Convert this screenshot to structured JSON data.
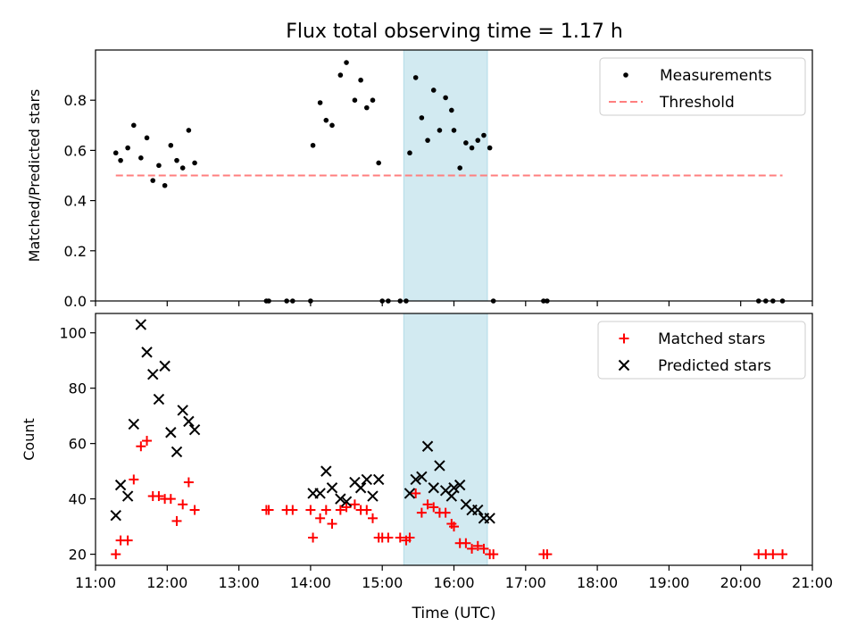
{
  "figure_title": "Flux total observing time = 1.17 h",
  "colors": {
    "matched": "#ff0000",
    "predicted": "#000000",
    "measurement": "#000000",
    "threshold": "#ff7f7f",
    "highlight": "#add8e6"
  },
  "chart_data": [
    {
      "type": "scatter",
      "title": "Flux total observing time = 1.17 h",
      "xlabel": "",
      "ylabel": "Matched/Predicted stars",
      "xlim": [
        "11:00",
        "21:00"
      ],
      "ylim": [
        0,
        1.0
      ],
      "yticks": [
        "0.0",
        "0.2",
        "0.4",
        "0.6",
        "0.8"
      ],
      "xticks": [
        "11:00",
        "12:00",
        "13:00",
        "14:00",
        "15:00",
        "16:00",
        "17:00",
        "18:00",
        "19:00",
        "20:00",
        "21:00"
      ],
      "highlight_span": [
        "15:18",
        "16:28"
      ],
      "legend": {
        "position": "upper right",
        "entries": [
          {
            "label": "Measurements",
            "marker": "dot"
          },
          {
            "label": "Threshold",
            "marker": "dashed-line"
          }
        ]
      },
      "series": [
        {
          "name": "Measurements",
          "marker": "dot",
          "points": [
            [
              "11:17",
              0.59
            ],
            [
              "11:21",
              0.56
            ],
            [
              "11:27",
              0.61
            ],
            [
              "11:32",
              0.7
            ],
            [
              "11:38",
              0.57
            ],
            [
              "11:43",
              0.65
            ],
            [
              "11:48",
              0.48
            ],
            [
              "11:53",
              0.54
            ],
            [
              "11:58",
              0.46
            ],
            [
              "12:03",
              0.62
            ],
            [
              "12:08",
              0.56
            ],
            [
              "12:13",
              0.53
            ],
            [
              "12:18",
              0.68
            ],
            [
              "12:23",
              0.55
            ],
            [
              "13:23",
              0.0
            ],
            [
              "13:25",
              0.0
            ],
            [
              "13:40",
              0.0
            ],
            [
              "13:45",
              0.0
            ],
            [
              "14:00",
              0.0
            ],
            [
              "14:02",
              0.62
            ],
            [
              "14:08",
              0.79
            ],
            [
              "14:13",
              0.72
            ],
            [
              "14:18",
              0.7
            ],
            [
              "14:25",
              0.9
            ],
            [
              "14:30",
              0.95
            ],
            [
              "14:37",
              0.8
            ],
            [
              "14:42",
              0.88
            ],
            [
              "14:47",
              0.77
            ],
            [
              "14:52",
              0.8
            ],
            [
              "14:57",
              0.55
            ],
            [
              "15:00",
              0.0
            ],
            [
              "15:05",
              0.0
            ],
            [
              "15:15",
              0.0
            ],
            [
              "15:20",
              0.0
            ],
            [
              "15:23",
              0.59
            ],
            [
              "15:28",
              0.89
            ],
            [
              "15:33",
              0.73
            ],
            [
              "15:38",
              0.64
            ],
            [
              "15:43",
              0.84
            ],
            [
              "15:48",
              0.68
            ],
            [
              "15:53",
              0.81
            ],
            [
              "15:58",
              0.76
            ],
            [
              "16:00",
              0.68
            ],
            [
              "16:05",
              0.53
            ],
            [
              "16:10",
              0.63
            ],
            [
              "16:15",
              0.61
            ],
            [
              "16:20",
              0.64
            ],
            [
              "16:25",
              0.66
            ],
            [
              "16:30",
              0.61
            ],
            [
              "16:33",
              0.0
            ],
            [
              "17:15",
              0.0
            ],
            [
              "17:18",
              0.0
            ],
            [
              "20:15",
              0.0
            ],
            [
              "20:21",
              0.0
            ],
            [
              "20:27",
              0.0
            ],
            [
              "20:35",
              0.0
            ]
          ]
        },
        {
          "name": "Threshold",
          "marker": "dashed-line",
          "points": [
            [
              "11:17",
              0.5
            ],
            [
              "20:35",
              0.5
            ]
          ]
        }
      ]
    },
    {
      "type": "scatter",
      "title": "",
      "xlabel": "Time (UTC)",
      "ylabel": "Count",
      "xlim": [
        "11:00",
        "21:00"
      ],
      "ylim": [
        16,
        107
      ],
      "yticks": [
        "20",
        "40",
        "60",
        "80",
        "100"
      ],
      "xticks": [
        "11:00",
        "12:00",
        "13:00",
        "14:00",
        "15:00",
        "16:00",
        "17:00",
        "18:00",
        "19:00",
        "20:00",
        "21:00"
      ],
      "highlight_span": [
        "15:18",
        "16:28"
      ],
      "legend": {
        "position": "upper right",
        "entries": [
          {
            "label": "Matched stars",
            "marker": "plus"
          },
          {
            "label": "Predicted stars",
            "marker": "x"
          }
        ]
      },
      "series": [
        {
          "name": "Matched stars",
          "marker": "plus",
          "points": [
            [
              "11:17",
              20
            ],
            [
              "11:21",
              25
            ],
            [
              "11:27",
              25
            ],
            [
              "11:32",
              47
            ],
            [
              "11:38",
              59
            ],
            [
              "11:43",
              61
            ],
            [
              "11:48",
              41
            ],
            [
              "11:53",
              41
            ],
            [
              "11:58",
              40
            ],
            [
              "12:03",
              40
            ],
            [
              "12:08",
              32
            ],
            [
              "12:13",
              38
            ],
            [
              "12:18",
              46
            ],
            [
              "12:23",
              36
            ],
            [
              "13:23",
              36
            ],
            [
              "13:25",
              36
            ],
            [
              "13:40",
              36
            ],
            [
              "13:45",
              36
            ],
            [
              "14:00",
              36
            ],
            [
              "14:02",
              26
            ],
            [
              "14:08",
              33
            ],
            [
              "14:13",
              36
            ],
            [
              "14:18",
              31
            ],
            [
              "14:25",
              36
            ],
            [
              "14:30",
              37
            ],
            [
              "14:37",
              38
            ],
            [
              "14:42",
              36
            ],
            [
              "14:47",
              36
            ],
            [
              "14:52",
              33
            ],
            [
              "14:57",
              26
            ],
            [
              "15:00",
              26
            ],
            [
              "15:05",
              26
            ],
            [
              "15:15",
              26
            ],
            [
              "15:20",
              25
            ],
            [
              "15:23",
              26
            ],
            [
              "15:28",
              42
            ],
            [
              "15:33",
              35
            ],
            [
              "15:38",
              38
            ],
            [
              "15:43",
              37
            ],
            [
              "15:48",
              35
            ],
            [
              "15:53",
              35
            ],
            [
              "15:58",
              31
            ],
            [
              "16:00",
              30
            ],
            [
              "16:05",
              24
            ],
            [
              "16:10",
              24
            ],
            [
              "16:15",
              22
            ],
            [
              "16:20",
              23
            ],
            [
              "16:25",
              22
            ],
            [
              "16:30",
              20
            ],
            [
              "16:33",
              20
            ],
            [
              "17:15",
              20
            ],
            [
              "17:18",
              20
            ],
            [
              "20:15",
              20
            ],
            [
              "20:21",
              20
            ],
            [
              "20:27",
              20
            ],
            [
              "20:35",
              20
            ]
          ]
        },
        {
          "name": "Predicted stars",
          "marker": "x",
          "points": [
            [
              "11:17",
              34
            ],
            [
              "11:21",
              45
            ],
            [
              "11:27",
              41
            ],
            [
              "11:32",
              67
            ],
            [
              "11:38",
              103
            ],
            [
              "11:43",
              93
            ],
            [
              "11:48",
              85
            ],
            [
              "11:53",
              76
            ],
            [
              "11:58",
              88
            ],
            [
              "12:03",
              64
            ],
            [
              "12:08",
              57
            ],
            [
              "12:13",
              72
            ],
            [
              "12:18",
              68
            ],
            [
              "12:23",
              65
            ],
            [
              "14:02",
              42
            ],
            [
              "14:08",
              42
            ],
            [
              "14:13",
              50
            ],
            [
              "14:18",
              44
            ],
            [
              "14:25",
              40
            ],
            [
              "14:30",
              39
            ],
            [
              "14:37",
              46
            ],
            [
              "14:42",
              44
            ],
            [
              "14:47",
              47
            ],
            [
              "14:52",
              41
            ],
            [
              "14:57",
              47
            ],
            [
              "15:23",
              42
            ],
            [
              "15:28",
              47
            ],
            [
              "15:33",
              48
            ],
            [
              "15:38",
              59
            ],
            [
              "15:43",
              44
            ],
            [
              "15:48",
              52
            ],
            [
              "15:53",
              43
            ],
            [
              "15:58",
              41
            ],
            [
              "16:00",
              44
            ],
            [
              "16:05",
              45
            ],
            [
              "16:10",
              38
            ],
            [
              "16:15",
              36
            ],
            [
              "16:20",
              36
            ],
            [
              "16:25",
              33
            ],
            [
              "16:30",
              33
            ]
          ]
        }
      ]
    }
  ]
}
